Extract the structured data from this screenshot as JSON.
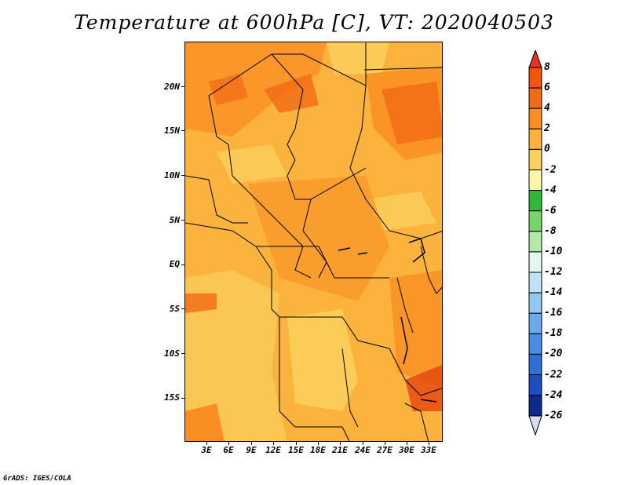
{
  "title": "Temperature at 600hPa [C], VT: 2020040503",
  "credit": "GrADS: IGES/COLA",
  "map": {
    "lat_labels": [
      "20N",
      "15N",
      "10N",
      "5N",
      "EQ",
      "5S",
      "10S",
      "15S"
    ],
    "lon_labels": [
      "3E",
      "6E",
      "9E",
      "12E",
      "15E",
      "18E",
      "21E",
      "24E",
      "27E",
      "30E",
      "33E"
    ],
    "colors": {
      "warm_light": "#fbd05e",
      "warm_mid": "#fbb33e",
      "warm_orange": "#f98e22",
      "warm_dark": "#f26a14",
      "hot_red": "#e84a0f"
    }
  },
  "colorbar": {
    "labels": [
      "8",
      "6",
      "4",
      "2",
      "0",
      "-2",
      "-4",
      "-6",
      "-8",
      "-10",
      "-12",
      "-14",
      "-16",
      "-18",
      "-20",
      "-22",
      "-24",
      "-26"
    ],
    "colors": [
      "#e2361c",
      "#f0540f",
      "#f36b14",
      "#f98e22",
      "#fbb33e",
      "#fbd05e",
      "#fdf5a8",
      "#2fb838",
      "#7ad46e",
      "#b4eaa9",
      "#e4f7ef",
      "#bfe2f7",
      "#92c9f2",
      "#6aaaea",
      "#4a8ee4",
      "#2f6fd8",
      "#1a4fbd",
      "#0b2a8a",
      "#d7dbf4"
    ]
  }
}
